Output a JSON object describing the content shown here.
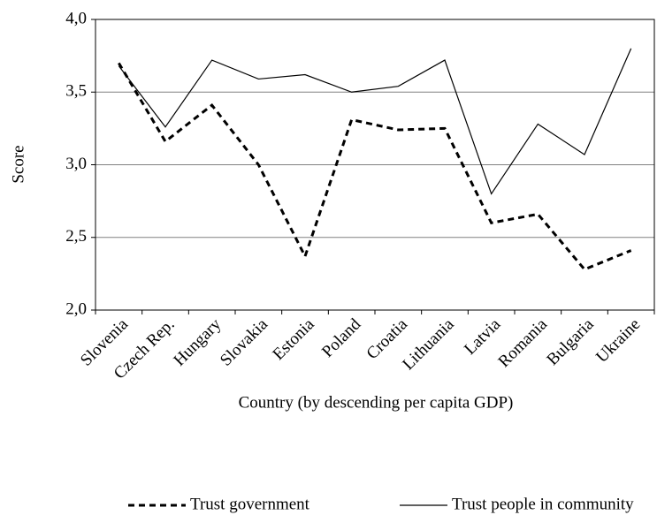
{
  "chart_data": {
    "type": "line",
    "y_label": "Score",
    "x_label": "Country (by descending per capita GDP)",
    "categories": [
      "Slovenia",
      "Czech Rep.",
      "Hungary",
      "Slovakia",
      "Estonia",
      "Poland",
      "Croatia",
      "Lithuania",
      "Latvia",
      "Romania",
      "Bulgaria",
      "Ukraine"
    ],
    "series": [
      {
        "name": "Trust government",
        "color": "#000000",
        "style": "dashed",
        "values": [
          3.7,
          3.16,
          3.41,
          3.0,
          2.37,
          3.31,
          3.24,
          3.25,
          2.6,
          2.66,
          2.28,
          2.41
        ]
      },
      {
        "name": "Trust people in community",
        "color": "#000000",
        "style": "solid",
        "values": [
          3.68,
          3.26,
          3.72,
          3.59,
          3.62,
          3.5,
          3.54,
          3.72,
          2.8,
          3.28,
          3.07,
          3.8
        ]
      }
    ],
    "ylim": [
      2,
      4
    ],
    "yticks": [
      {
        "value": 2,
        "label": "2,0"
      },
      {
        "value": 2.5,
        "label": "2,5"
      },
      {
        "value": 3,
        "label": "3,0"
      },
      {
        "value": 3.5,
        "label": "3,5"
      },
      {
        "value": 4,
        "label": "4,0"
      }
    ],
    "grid": true
  }
}
